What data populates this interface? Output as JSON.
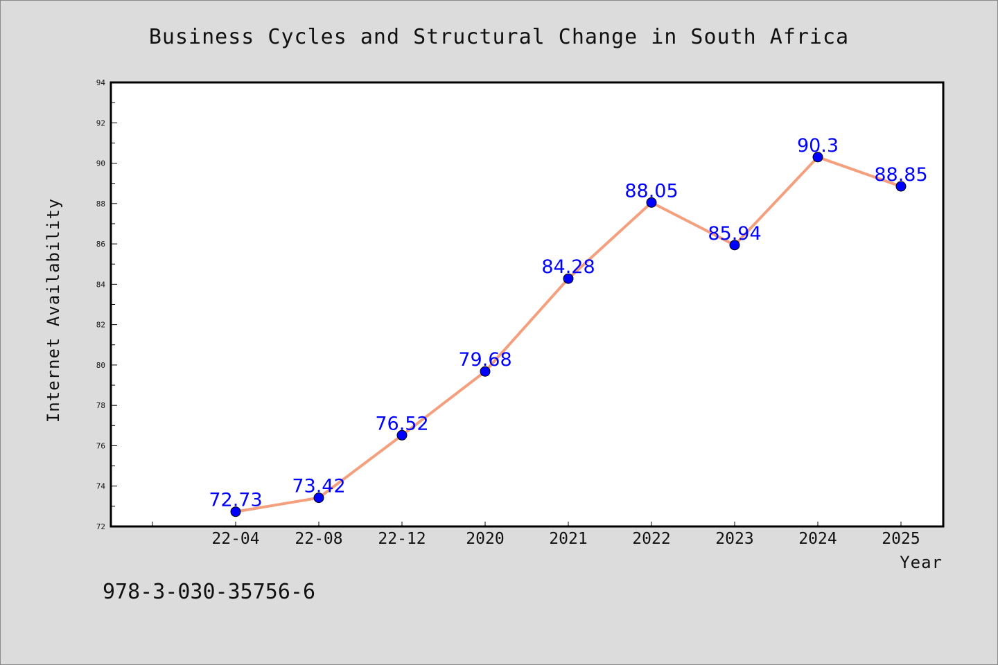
{
  "chart_data": {
    "type": "line",
    "title": "Business Cycles and Structural Change in South Africa",
    "xlabel": "Year",
    "ylabel": "Internet Availability",
    "categories": [
      "22-04",
      "22-08",
      "22-12",
      "2020",
      "2021",
      "2022",
      "2023",
      "2024",
      "2025"
    ],
    "series": [
      {
        "values": [
          72.73,
          73.42,
          76.52,
          79.68,
          84.28,
          88.05,
          85.94,
          90.3,
          88.85
        ],
        "data_labels": [
          "72.73",
          "73.42",
          "76.52",
          "79.68",
          "84.28",
          "88.05",
          "85.94",
          "90.3",
          "88.85"
        ]
      }
    ],
    "ylim": [
      72,
      94
    ],
    "yticks": [
      "72",
      "74",
      "76",
      "78",
      "80",
      "82",
      "84",
      "86",
      "88",
      "90",
      "92",
      "94"
    ],
    "grid": false,
    "line_color": "#f4a07e",
    "marker_color": "#0000ff",
    "label_color": "#0000ff",
    "background_color": "#dcdcdc",
    "plot_background": "#ffffff"
  },
  "footer": {
    "isbn": "978-3-030-35756-6"
  }
}
